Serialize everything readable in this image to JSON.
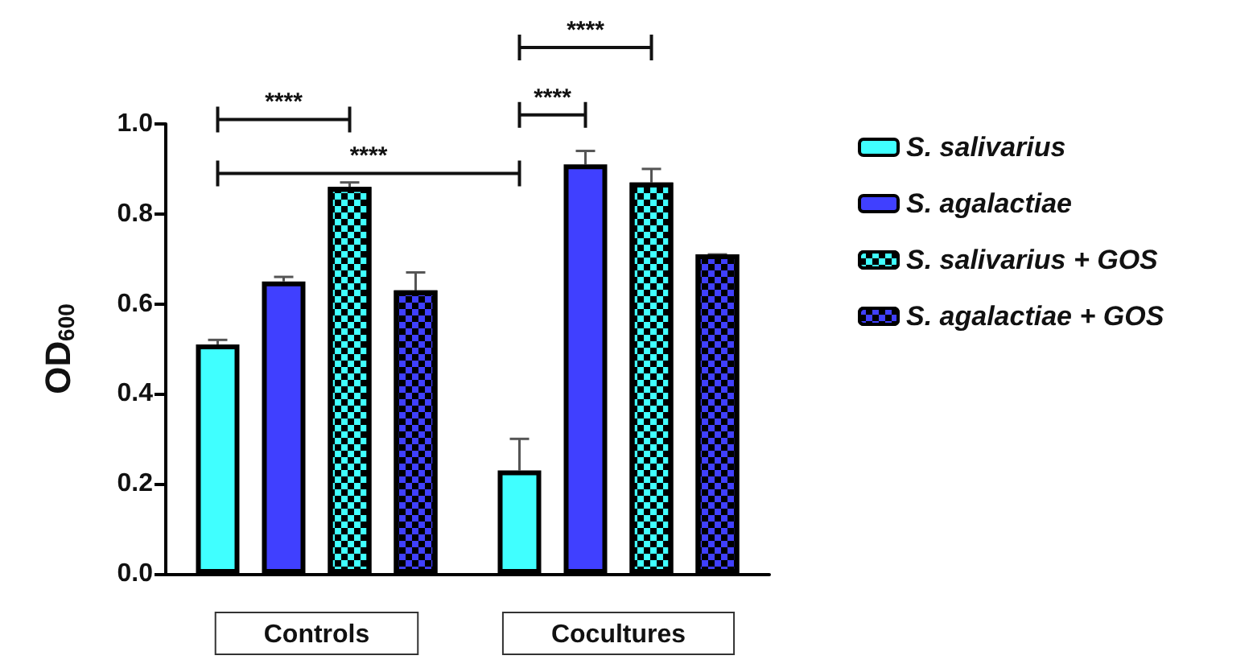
{
  "chart_data": {
    "type": "bar",
    "ylabel": "OD$_{600}$",
    "categories": [
      "Controls",
      "Cocultures"
    ],
    "series": [
      {
        "name": "S. salivarius",
        "color": "#40ffff",
        "values": [
          0.51,
          0.23
        ],
        "errors": [
          [
            0.51,
            0.52
          ],
          [
            0.23,
            0.3
          ]
        ]
      },
      {
        "name": "S. agalactiae",
        "color": "#4040ff",
        "values": [
          0.65,
          0.91
        ],
        "errors": [
          [
            0.65,
            0.66
          ],
          [
            0.91,
            0.94
          ]
        ]
      },
      {
        "name": "S. salivarius + GOS",
        "color": "#40ffff",
        "values": [
          0.86,
          0.87
        ],
        "errors": [
          [
            0.86,
            0.87
          ],
          [
            0.87,
            0.9
          ]
        ]
      },
      {
        "name": "S. agalactiae + GOS",
        "color": "#4040ff",
        "values": [
          0.63,
          0.71
        ],
        "errors": [
          [
            0.63,
            0.67
          ],
          [
            0.71,
            0.71
          ]
        ]
      }
    ],
    "ylim": [
      0,
      1.0
    ],
    "yticks": [
      {
        "value": 0,
        "label": "0.0"
      },
      {
        "value": 0.2,
        "label": "0.2"
      },
      {
        "value": 0.4,
        "label": "0.4"
      },
      {
        "value": 0.6,
        "label": "0.6"
      },
      {
        "value": 0.8,
        "label": "0.8"
      },
      {
        "value": 1.0,
        "label": "1.0"
      }
    ],
    "grid": false,
    "legend": "right",
    "annotations": [
      "****",
      "****",
      "****",
      "****"
    ]
  }
}
